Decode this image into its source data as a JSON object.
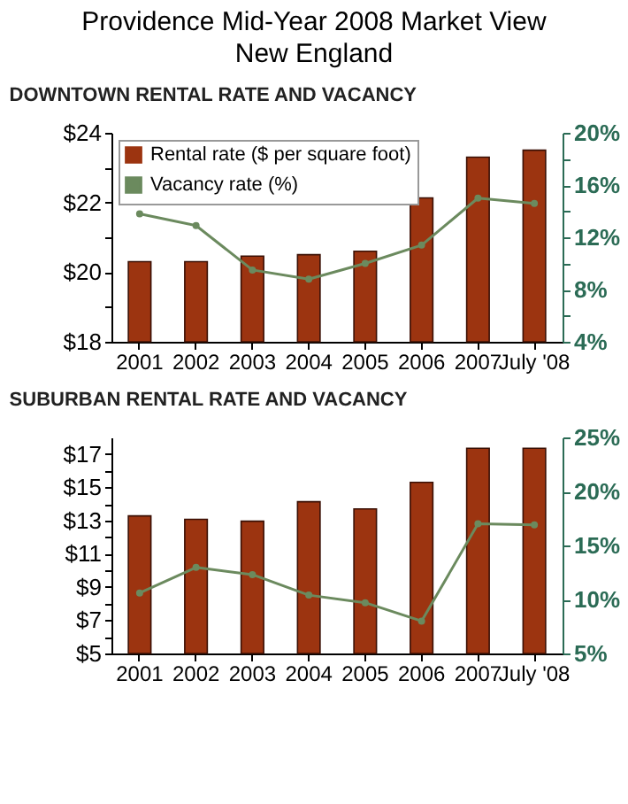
{
  "chart_data": [
    {
      "type": "bar",
      "title": "Providence Mid-Year 2008 Market View",
      "subtitle": "New England",
      "annotations": [
        "DOWNTOWN RENTAL RATE AND VACANCY"
      ],
      "categories": [
        "2001",
        "2002",
        "2003",
        "2004",
        "2005",
        "2006",
        "2007",
        "July '08"
      ],
      "series": [
        {
          "name": "Rental rate ($ per square foot)",
          "color": "#9c3410",
          "values": [
            20.3,
            20.3,
            20.46,
            20.5,
            20.6,
            22.13,
            23.3,
            23.5
          ]
        },
        {
          "name": "Vacancy rate (%)",
          "type": "line",
          "axis": "y2",
          "color": "#6b8a5e",
          "values": [
            13.8,
            12.9,
            9.5,
            8.8,
            10.0,
            11.4,
            15.0,
            14.6
          ]
        }
      ],
      "ylim": [
        18,
        24
      ],
      "yticks": [
        {
          "value": 18,
          "label": "$18"
        },
        {
          "value": 19,
          "label": null
        },
        {
          "value": 20,
          "label": "$20"
        },
        {
          "value": 21,
          "label": null
        },
        {
          "value": 22,
          "label": "$22"
        },
        {
          "value": 23,
          "label": null
        },
        {
          "value": 24,
          "label": "$24"
        }
      ],
      "y2lim": [
        4,
        20
      ],
      "y2ticks": [
        {
          "value": 4,
          "label": "4%"
        },
        {
          "value": 6,
          "label": null
        },
        {
          "value": 8,
          "label": "8%"
        },
        {
          "value": 10,
          "label": null
        },
        {
          "value": 12,
          "label": "12%"
        },
        {
          "value": 14,
          "label": null
        },
        {
          "value": 16,
          "label": "16%"
        },
        {
          "value": 18,
          "label": null
        },
        {
          "value": 20,
          "label": "20%"
        }
      ],
      "legend": "top left",
      "marker": "circle"
    },
    {
      "type": "bar",
      "title": "SUBURBAN RENTAL RATE AND VACANCY",
      "categories": [
        "2001",
        "2002",
        "2003",
        "2004",
        "2005",
        "2006",
        "2007",
        "July '08"
      ],
      "series": [
        {
          "color": "#9c3410",
          "values": [
            13.28,
            13.07,
            12.96,
            14.13,
            13.7,
            15.3,
            17.35,
            17.35
          ]
        },
        {
          "type": "line",
          "axis": "y2",
          "color": "#6b8a5e",
          "values": [
            10.6,
            12.97,
            12.3,
            10.4,
            9.7,
            8.0,
            17.0,
            16.9
          ]
        }
      ],
      "ylim": [
        5,
        18
      ],
      "yticks": [
        {
          "value": 5,
          "label": "$5"
        },
        {
          "value": 6,
          "label": null
        },
        {
          "value": 7,
          "label": "$7"
        },
        {
          "value": 8,
          "label": null
        },
        {
          "value": 9,
          "label": "$9"
        },
        {
          "value": 10,
          "label": null
        },
        {
          "value": 11,
          "label": "$11"
        },
        {
          "value": 12,
          "label": null
        },
        {
          "value": 13,
          "label": "$13"
        },
        {
          "value": 14,
          "label": null
        },
        {
          "value": 15,
          "label": "$15"
        },
        {
          "value": 16,
          "label": null
        },
        {
          "value": 17,
          "label": "$17"
        }
      ],
      "y2lim": [
        5,
        25
      ],
      "y2ticks": [
        {
          "value": 5,
          "label": "5%"
        },
        {
          "value": 10,
          "label": "10%"
        },
        {
          "value": 15,
          "label": "15%"
        },
        {
          "value": 20,
          "label": "20%"
        },
        {
          "value": 25,
          "label": "25%"
        }
      ],
      "legend": false,
      "marker": "circle"
    }
  ]
}
